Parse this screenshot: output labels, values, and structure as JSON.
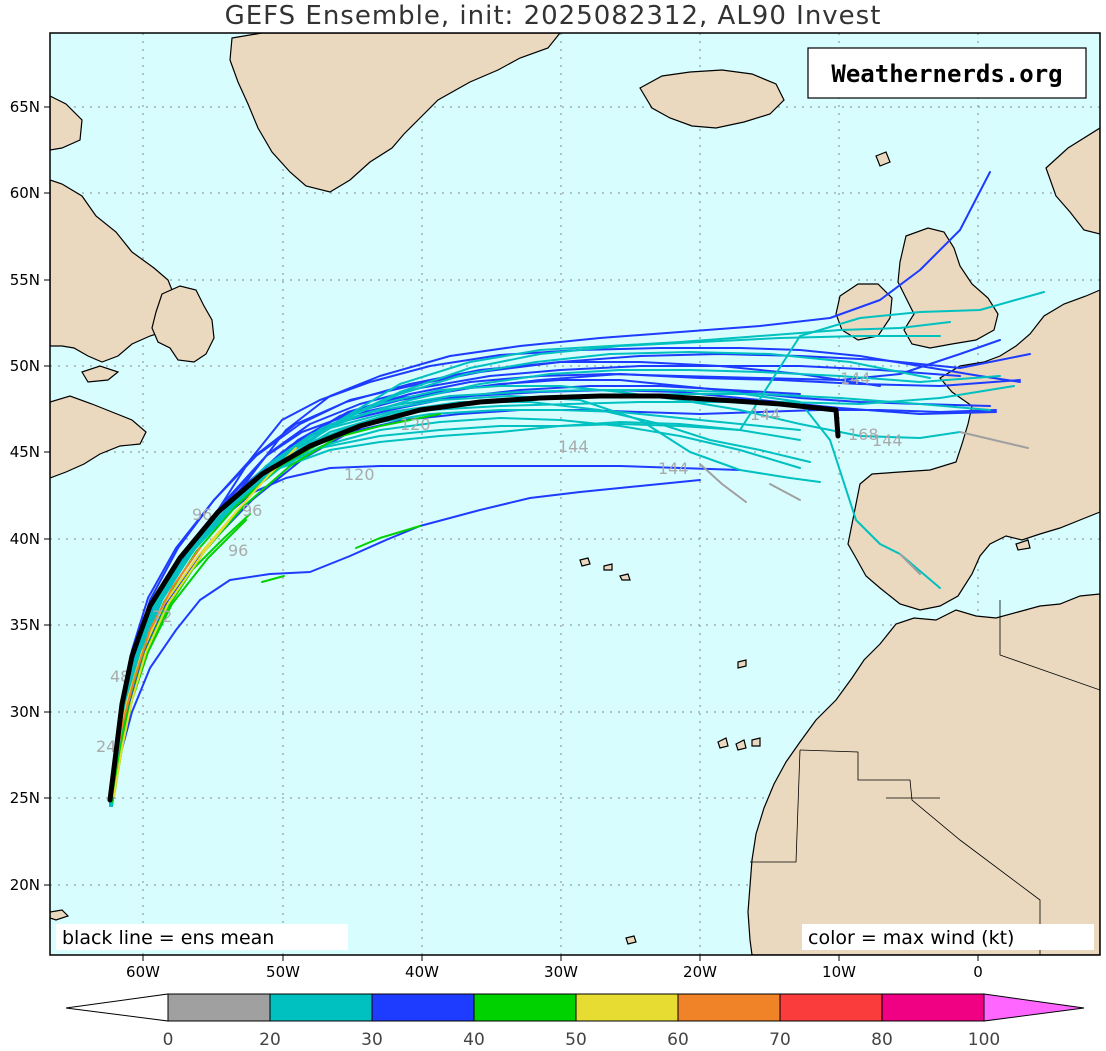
{
  "title": "GEFS Ensemble, init: 2025082312, AL90 Invest",
  "branding": "Weathernerds.org",
  "note_left": "black line = ens mean",
  "note_right": "color = max wind (kt)",
  "axes": {
    "lon_labels": [
      "60W",
      "50W",
      "40W",
      "30W",
      "20W",
      "10W",
      "0"
    ],
    "lat_labels": [
      "65N",
      "60N",
      "55N",
      "50N",
      "45N",
      "40N",
      "35N",
      "30N",
      "25N",
      "20N"
    ]
  },
  "colorbar": {
    "labels": [
      "0",
      "20",
      "30",
      "40",
      "50",
      "60",
      "70",
      "80",
      "100"
    ],
    "colors": [
      "#a0a0a0",
      "#00c0c0",
      "#1e3cff",
      "#00d200",
      "#e6dc32",
      "#f08228",
      "#fa3c3c",
      "#f00082",
      "#ff66ff"
    ]
  },
  "colors": {
    "ocean": "#d8fdff",
    "land": "#ead9bf",
    "mean_track": "#000000"
  },
  "hour_labels": [
    "24",
    "48",
    "72",
    "96",
    "96",
    "96",
    "120",
    "120",
    "144",
    "144",
    "144",
    "144",
    "144",
    "168"
  ]
}
